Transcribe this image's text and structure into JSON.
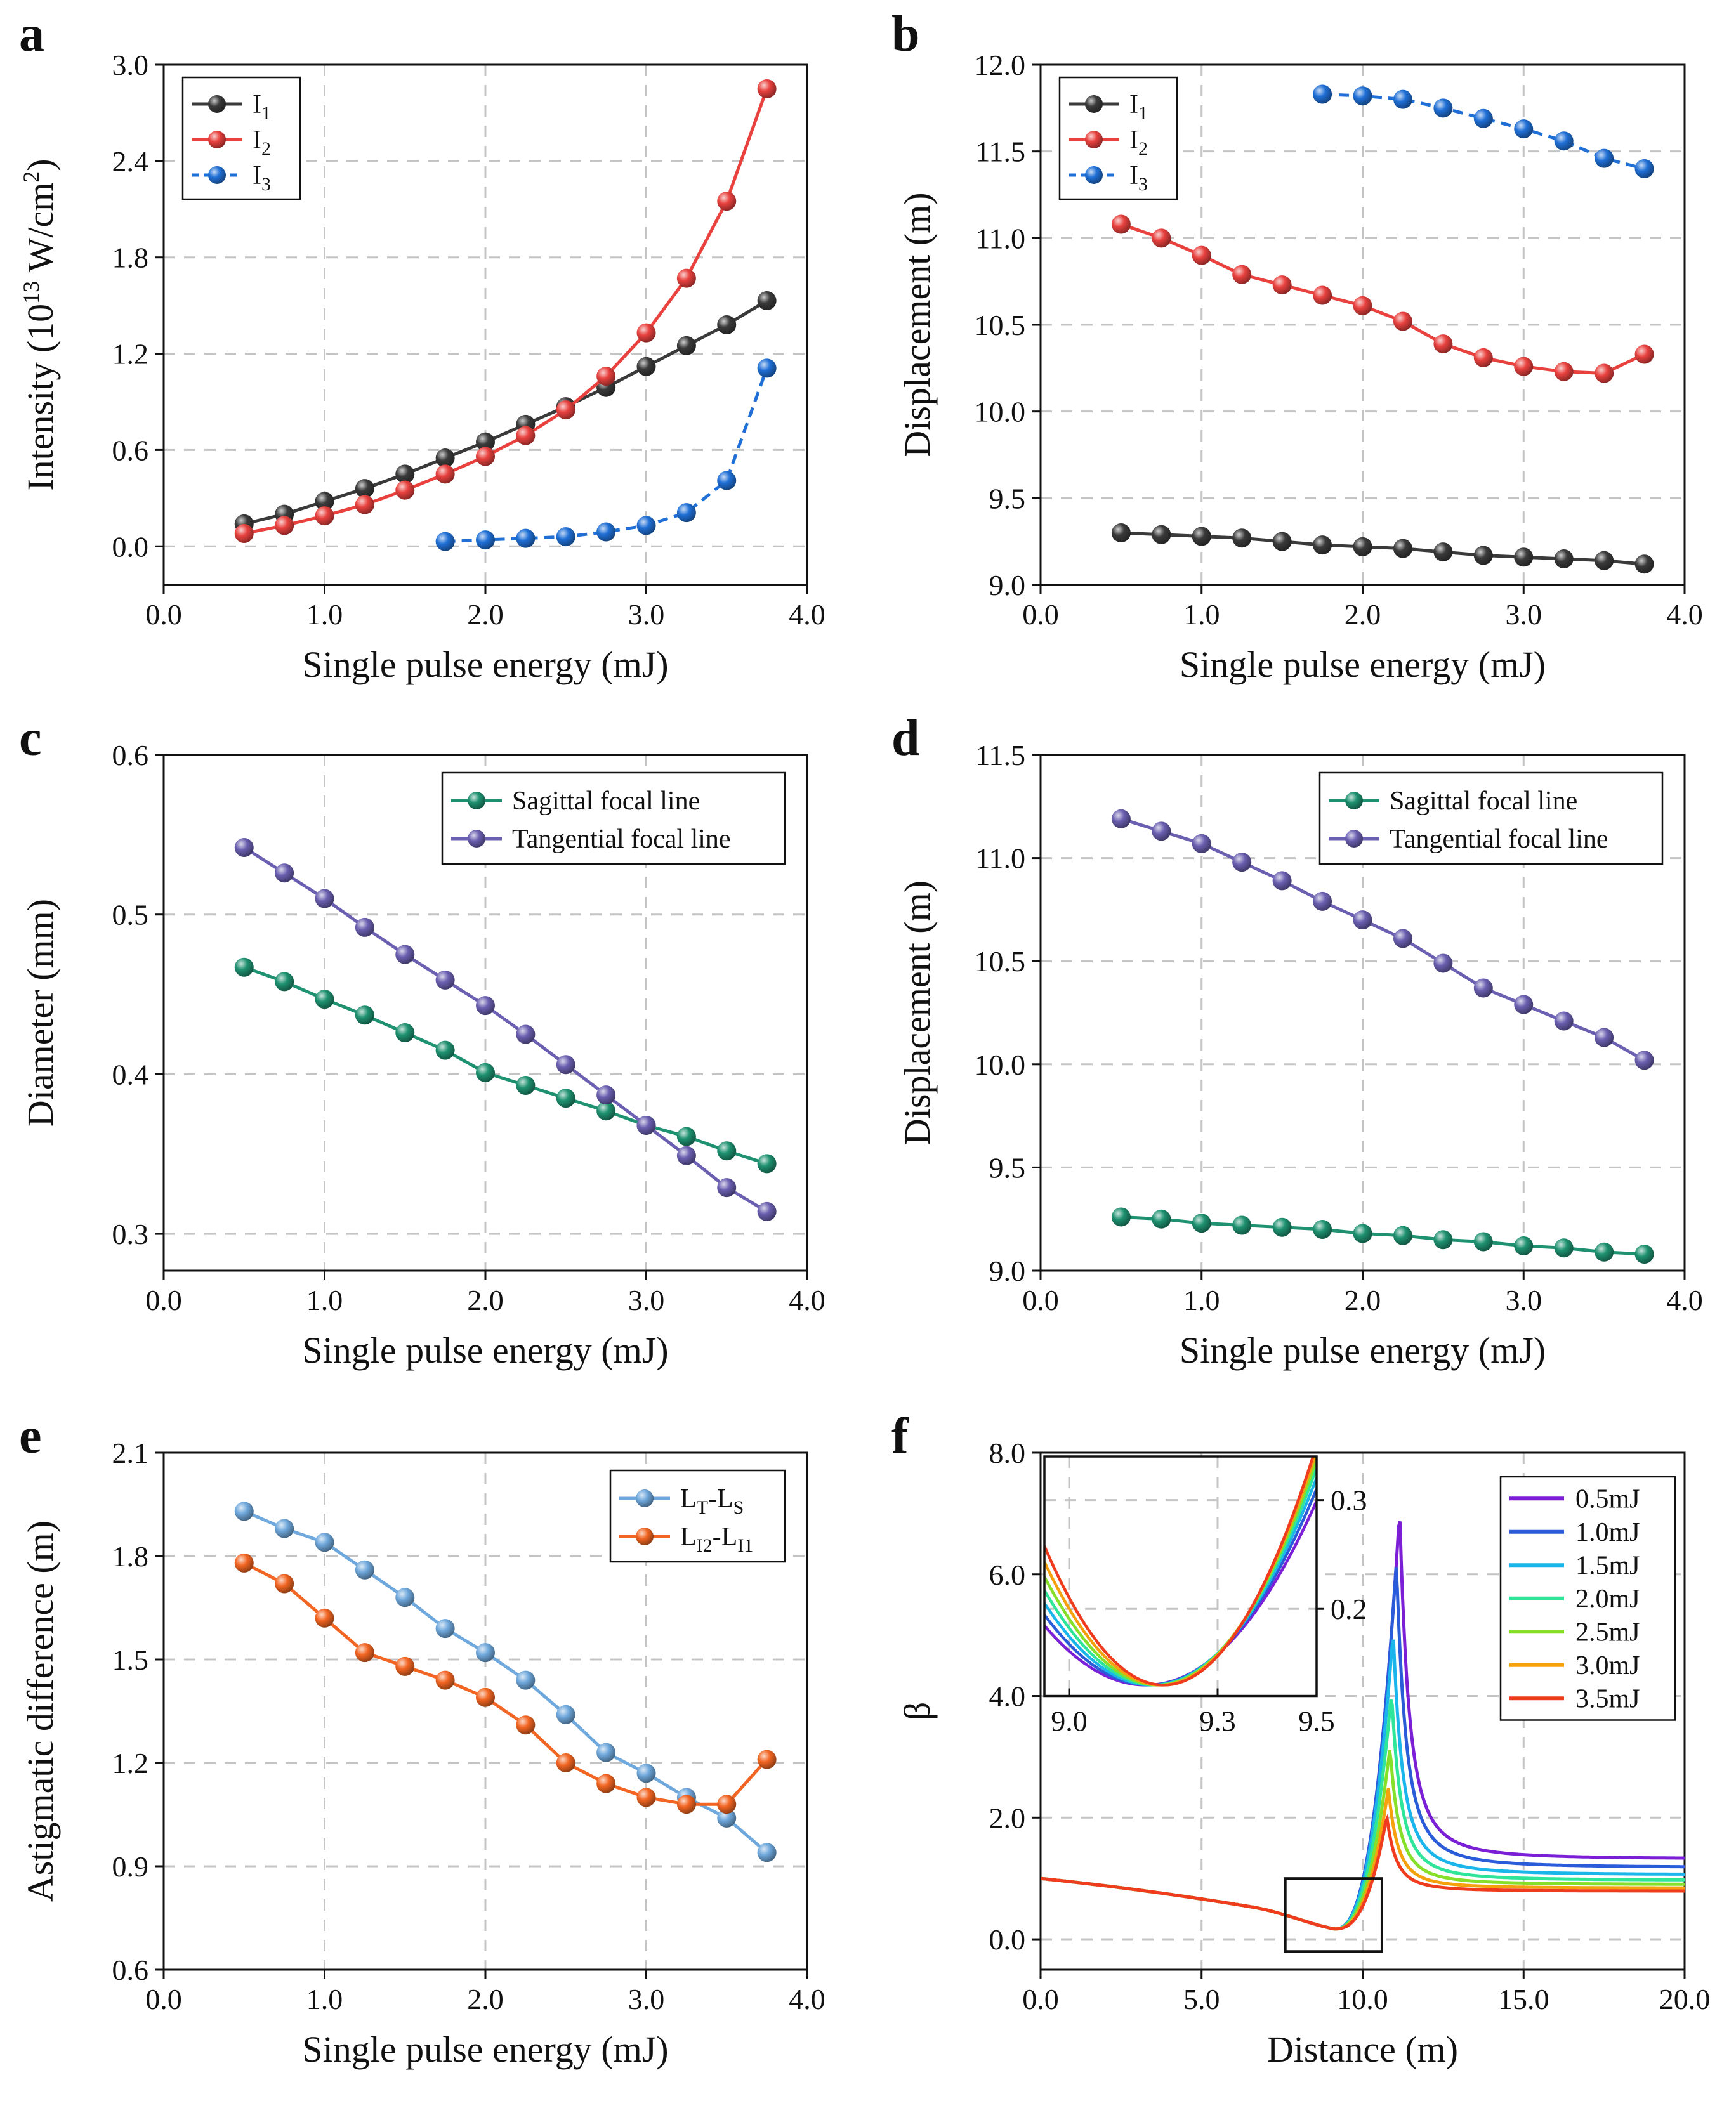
{
  "chart_data": [
    {
      "panel": "a",
      "type": "line",
      "xlabel": "Single pulse energy (mJ)",
      "ylabel_parts": [
        "Intensity (10",
        "13",
        " W/cm",
        "2",
        ")"
      ],
      "xlim": [
        0.0,
        4.0
      ],
      "ylim": [
        -0.24,
        3.0
      ],
      "xticks": [
        "0.0",
        "1.0",
        "2.0",
        "3.0",
        "4.0"
      ],
      "yticks": [
        "0.0",
        "0.6",
        "1.2",
        "1.8",
        "2.4",
        "3.0"
      ],
      "legend_position": "top-left",
      "series": [
        {
          "name": "I",
          "sub": "1",
          "color": "#3a3a3a",
          "dash": false,
          "x": [
            0.5,
            0.75,
            1.0,
            1.25,
            1.5,
            1.75,
            2.0,
            2.25,
            2.5,
            2.75,
            3.0,
            3.25,
            3.5,
            3.75
          ],
          "y": [
            0.14,
            0.2,
            0.28,
            0.36,
            0.45,
            0.55,
            0.65,
            0.76,
            0.87,
            0.99,
            1.12,
            1.25,
            1.38,
            1.53
          ]
        },
        {
          "name": "I",
          "sub": "2",
          "color": "#e8413e",
          "dash": false,
          "x": [
            0.5,
            0.75,
            1.0,
            1.25,
            1.5,
            1.75,
            2.0,
            2.25,
            2.5,
            2.75,
            3.0,
            3.25,
            3.5,
            3.75
          ],
          "y": [
            0.08,
            0.13,
            0.19,
            0.26,
            0.35,
            0.45,
            0.56,
            0.69,
            0.85,
            1.06,
            1.33,
            1.67,
            2.15,
            2.85
          ]
        },
        {
          "name": "I",
          "sub": "3",
          "color": "#1f6fd6",
          "dash": true,
          "x": [
            1.75,
            2.0,
            2.25,
            2.5,
            2.75,
            3.0,
            3.25,
            3.5,
            3.75
          ],
          "y": [
            0.03,
            0.04,
            0.05,
            0.06,
            0.09,
            0.13,
            0.21,
            0.41,
            1.11
          ]
        }
      ]
    },
    {
      "panel": "b",
      "type": "line",
      "xlabel": "Single pulse energy (mJ)",
      "ylabel": "Displacement (m)",
      "xlim": [
        0.0,
        4.0
      ],
      "ylim": [
        9.0,
        12.0
      ],
      "xticks": [
        "0.0",
        "1.0",
        "2.0",
        "3.0",
        "4.0"
      ],
      "yticks": [
        "9.0",
        "9.5",
        "10.0",
        "10.5",
        "11.0",
        "11.5",
        "12.0"
      ],
      "legend_position": "top-left",
      "series": [
        {
          "name": "I",
          "sub": "1",
          "color": "#3a3a3a",
          "dash": false,
          "x": [
            0.5,
            0.75,
            1.0,
            1.25,
            1.5,
            1.75,
            2.0,
            2.25,
            2.5,
            2.75,
            3.0,
            3.25,
            3.5,
            3.75
          ],
          "y": [
            9.3,
            9.29,
            9.28,
            9.27,
            9.25,
            9.23,
            9.22,
            9.21,
            9.19,
            9.17,
            9.16,
            9.15,
            9.14,
            9.12
          ]
        },
        {
          "name": "I",
          "sub": "2",
          "color": "#e8413e",
          "dash": false,
          "x": [
            0.5,
            0.75,
            1.0,
            1.25,
            1.5,
            1.75,
            2.0,
            2.25,
            2.5,
            2.75,
            3.0,
            3.25,
            3.5,
            3.75
          ],
          "y": [
            11.08,
            11.0,
            10.9,
            10.79,
            10.73,
            10.67,
            10.61,
            10.52,
            10.39,
            10.31,
            10.26,
            10.23,
            10.22,
            10.33
          ]
        },
        {
          "name": "I",
          "sub": "3",
          "color": "#1f6fd6",
          "dash": true,
          "x": [
            1.75,
            2.0,
            2.25,
            2.5,
            2.75,
            3.0,
            3.25,
            3.5,
            3.75
          ],
          "y": [
            11.83,
            11.82,
            11.8,
            11.75,
            11.69,
            11.63,
            11.56,
            11.46,
            11.4
          ]
        }
      ]
    },
    {
      "panel": "c",
      "type": "line",
      "xlabel": "Single pulse energy (mJ)",
      "ylabel": "Diameter (mm)",
      "xlim": [
        0.0,
        4.0
      ],
      "ylim": [
        0.277,
        0.6
      ],
      "xticks": [
        "0.0",
        "1.0",
        "2.0",
        "3.0",
        "4.0"
      ],
      "yticks": [
        "0.3",
        "0.4",
        "0.5",
        "0.6"
      ],
      "legend_position": "top-right",
      "series": [
        {
          "name": "Sagittal focal line",
          "color": "#1e9170",
          "dash": false,
          "x": [
            0.5,
            0.75,
            1.0,
            1.25,
            1.5,
            1.75,
            2.0,
            2.25,
            2.5,
            2.75,
            3.0,
            3.25,
            3.5,
            3.75
          ],
          "y": [
            0.467,
            0.458,
            0.447,
            0.437,
            0.426,
            0.415,
            0.401,
            0.393,
            0.385,
            0.377,
            0.368,
            0.361,
            0.352,
            0.344
          ]
        },
        {
          "name": "Tangential focal line",
          "color": "#6a5fb0",
          "dash": false,
          "x": [
            0.5,
            0.75,
            1.0,
            1.25,
            1.5,
            1.75,
            2.0,
            2.25,
            2.5,
            2.75,
            3.0,
            3.25,
            3.5,
            3.75
          ],
          "y": [
            0.542,
            0.526,
            0.51,
            0.492,
            0.475,
            0.459,
            0.443,
            0.425,
            0.406,
            0.387,
            0.368,
            0.349,
            0.329,
            0.314
          ]
        }
      ]
    },
    {
      "panel": "d",
      "type": "line",
      "xlabel": "Single pulse energy (mJ)",
      "ylabel": "Displacement (m)",
      "xlim": [
        0.0,
        4.0
      ],
      "ylim": [
        9.0,
        11.5
      ],
      "xticks": [
        "0.0",
        "1.0",
        "2.0",
        "3.0",
        "4.0"
      ],
      "yticks": [
        "9.0",
        "9.5",
        "10.0",
        "10.5",
        "11.0",
        "11.5"
      ],
      "legend_position": "top-right",
      "series": [
        {
          "name": "Sagittal focal line",
          "color": "#1e9170",
          "dash": false,
          "x": [
            0.5,
            0.75,
            1.0,
            1.25,
            1.5,
            1.75,
            2.0,
            2.25,
            2.5,
            2.75,
            3.0,
            3.25,
            3.5,
            3.75
          ],
          "y": [
            9.26,
            9.25,
            9.23,
            9.22,
            9.21,
            9.2,
            9.18,
            9.17,
            9.15,
            9.14,
            9.12,
            9.11,
            9.09,
            9.08
          ]
        },
        {
          "name": "Tangential focal line",
          "color": "#6a5fb0",
          "dash": false,
          "x": [
            0.5,
            0.75,
            1.0,
            1.25,
            1.5,
            1.75,
            2.0,
            2.25,
            2.5,
            2.75,
            3.0,
            3.25,
            3.5,
            3.75
          ],
          "y": [
            11.19,
            11.13,
            11.07,
            10.98,
            10.89,
            10.79,
            10.7,
            10.61,
            10.49,
            10.37,
            10.29,
            10.21,
            10.13,
            10.02
          ]
        }
      ]
    },
    {
      "panel": "e",
      "type": "line",
      "xlabel": "Single pulse energy (mJ)",
      "ylabel": "Astigmatic difference (m)",
      "xlim": [
        0.0,
        4.0
      ],
      "ylim": [
        0.6,
        2.1
      ],
      "xticks": [
        "0.0",
        "1.0",
        "2.0",
        "3.0",
        "4.0"
      ],
      "yticks": [
        "0.6",
        "0.9",
        "1.2",
        "1.5",
        "1.8",
        "2.1"
      ],
      "legend_position": "top-right",
      "series": [
        {
          "name": "L",
          "sub": "T",
          "name2": "-L",
          "sub2": "S",
          "color": "#6fa8dc",
          "dash": false,
          "x": [
            0.5,
            0.75,
            1.0,
            1.25,
            1.5,
            1.75,
            2.0,
            2.25,
            2.5,
            2.75,
            3.0,
            3.25,
            3.5,
            3.75
          ],
          "y": [
            1.93,
            1.88,
            1.84,
            1.76,
            1.68,
            1.59,
            1.52,
            1.44,
            1.34,
            1.23,
            1.17,
            1.1,
            1.04,
            0.94
          ]
        },
        {
          "name": "L",
          "sub": "I2",
          "name2": "-L",
          "sub2": "I1",
          "color": "#f26522",
          "dash": false,
          "x": [
            0.5,
            0.75,
            1.0,
            1.25,
            1.5,
            1.75,
            2.0,
            2.25,
            2.5,
            2.75,
            3.0,
            3.25,
            3.5,
            3.75
          ],
          "y": [
            1.78,
            1.72,
            1.62,
            1.52,
            1.48,
            1.44,
            1.39,
            1.31,
            1.2,
            1.14,
            1.1,
            1.08,
            1.08,
            1.21
          ]
        }
      ]
    },
    {
      "panel": "f",
      "type": "line",
      "xlabel": "Distance (m)",
      "ylabel": "β",
      "xlim": [
        0.0,
        20.0
      ],
      "ylim": [
        -0.5,
        8.0
      ],
      "xticks": [
        "0.0",
        "5.0",
        "10.0",
        "15.0",
        "20.0"
      ],
      "yticks": [
        "0.0",
        "2.0",
        "4.0",
        "6.0",
        "8.0"
      ],
      "legend_position": "top-right",
      "series": [
        {
          "name": "0.5mJ",
          "color": "#7a1fd6",
          "peak_x": 11.15,
          "peak_y": 7.05,
          "tail": 1.32
        },
        {
          "name": "1.0mJ",
          "color": "#2a5bd9",
          "peak_x": 11.05,
          "peak_y": 6.2,
          "tail": 1.18
        },
        {
          "name": "1.5mJ",
          "color": "#1ab5ea",
          "peak_x": 10.95,
          "peak_y": 5.05,
          "tail": 1.06
        },
        {
          "name": "2.0mJ",
          "color": "#2ee59a",
          "peak_x": 10.9,
          "peak_y": 4.05,
          "tail": 0.97
        },
        {
          "name": "2.5mJ",
          "color": "#86e02a",
          "peak_x": 10.85,
          "peak_y": 3.15,
          "tail": 0.9
        },
        {
          "name": "3.0mJ",
          "color": "#f5a10d",
          "peak_x": 10.8,
          "peak_y": 2.48,
          "tail": 0.84
        },
        {
          "name": "3.5mJ",
          "color": "#f03c1e",
          "peak_x": 10.75,
          "peak_y": 2.02,
          "tail": 0.79
        }
      ],
      "inset": {
        "xlim": [
          8.95,
          9.5
        ],
        "ylim": [
          0.12,
          0.34
        ],
        "xticks": [
          "9.0",
          "9.3",
          "9.5"
        ],
        "yticks": [
          "0.2",
          "0.3"
        ]
      }
    }
  ],
  "panel_letters": [
    "a",
    "b",
    "c",
    "d",
    "e",
    "f"
  ]
}
